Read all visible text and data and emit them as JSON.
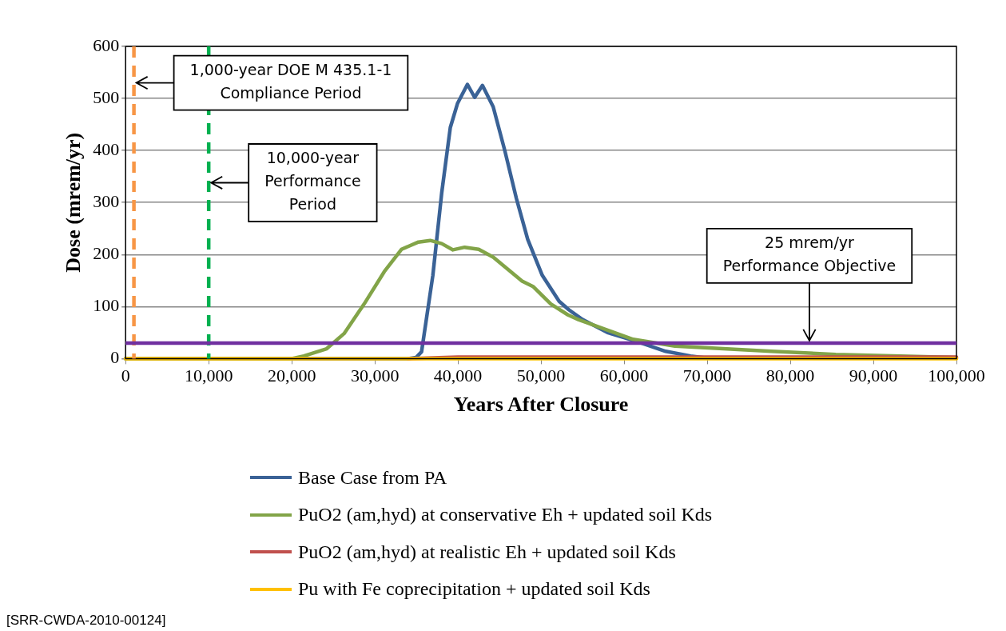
{
  "chart_data": {
    "type": "line",
    "xlabel": "Years After Closure",
    "ylabel": "Dose (mrem/yr)",
    "xlim": [
      0,
      100000
    ],
    "ylim": [
      0,
      600
    ],
    "xticks": [
      0,
      {
        "value": 10000,
        "label": "10,000"
      },
      {
        "value": 20000,
        "label": "20,000"
      },
      {
        "value": 30000,
        "label": "30,000"
      },
      {
        "value": 40000,
        "label": "40,000"
      },
      {
        "value": 50000,
        "label": "50,000"
      },
      {
        "value": 60000,
        "label": "60,000"
      },
      {
        "value": 70000,
        "label": "70,000"
      },
      {
        "value": 80000,
        "label": "80,000"
      },
      {
        "value": 90000,
        "label": "90,000"
      },
      {
        "value": 100000,
        "label": "100,000"
      }
    ],
    "yticks": [
      0,
      100,
      200,
      300,
      400,
      500,
      600
    ],
    "grid": "y",
    "legend": "bottom",
    "marker": "none",
    "line_style": "solid",
    "series": [
      {
        "name": "Base Case from PA",
        "color": "#3a6296",
        "x": [
          0,
          34000,
          34950,
          35620,
          36980,
          38050,
          39080,
          39940,
          41140,
          42010,
          42950,
          44240,
          45650,
          47030,
          48400,
          50150,
          52180,
          53340,
          55000,
          58000,
          61500,
          65000,
          68000,
          70000
        ],
        "values": [
          0,
          0,
          2,
          13,
          160,
          319,
          444,
          490,
          527,
          502,
          525,
          484,
          399,
          308,
          229,
          160,
          110,
          94,
          75,
          50,
          33,
          14,
          5,
          1
        ]
      },
      {
        "name": "PuO2 (am,hyd) at conservative Eh + updated soil Kds",
        "color": "#82a448",
        "x": [
          0,
          20000,
          21450,
          24200,
          26290,
          28710,
          31130,
          33200,
          35240,
          36660,
          38050,
          39400,
          40810,
          42500,
          44240,
          47720,
          49080,
          51180,
          53240,
          54500,
          61080,
          66120,
          77730,
          85480,
          93220,
          100000
        ],
        "values": [
          0,
          0,
          5,
          19,
          48,
          105,
          167,
          210,
          224,
          227,
          221,
          209,
          214,
          210,
          195,
          149,
          138,
          105,
          84,
          75,
          37,
          24,
          14,
          8,
          5,
          2
        ]
      },
      {
        "name": "PuO2 (am,hyd) at realistic Eh + updated soil Kds",
        "color": "#c0504d",
        "x": [
          34000,
          40000,
          100000
        ],
        "values": [
          0,
          3,
          3
        ]
      },
      {
        "name": "Pu with Fe coprecipitation + updated soil Kds",
        "color": "#ffc000",
        "x": [
          0,
          100000
        ],
        "values": [
          0,
          0
        ]
      }
    ],
    "ref_lines": [
      {
        "axis": "x",
        "value": 1000,
        "color": "#f79646",
        "line_style": "dashed"
      },
      {
        "axis": "x",
        "value": 10000,
        "color": "#00b050",
        "line_style": "dashed"
      },
      {
        "axis": "y",
        "value": 30,
        "color": "#7030a0",
        "line_style": "solid"
      }
    ],
    "annotations": [
      {
        "text": "1,000-year DOE M 435.1-1\nCompliance Period",
        "x": 1000,
        "y": 530
      },
      {
        "text": "10,000-year\nPerformance\nPeriod",
        "x": 10000,
        "y": 338
      },
      {
        "text": "25 mrem/yr\nPerformance Objective",
        "x": 82300,
        "y": 30
      },
      "[SRR-CWDA-2010-00124]"
    ]
  }
}
